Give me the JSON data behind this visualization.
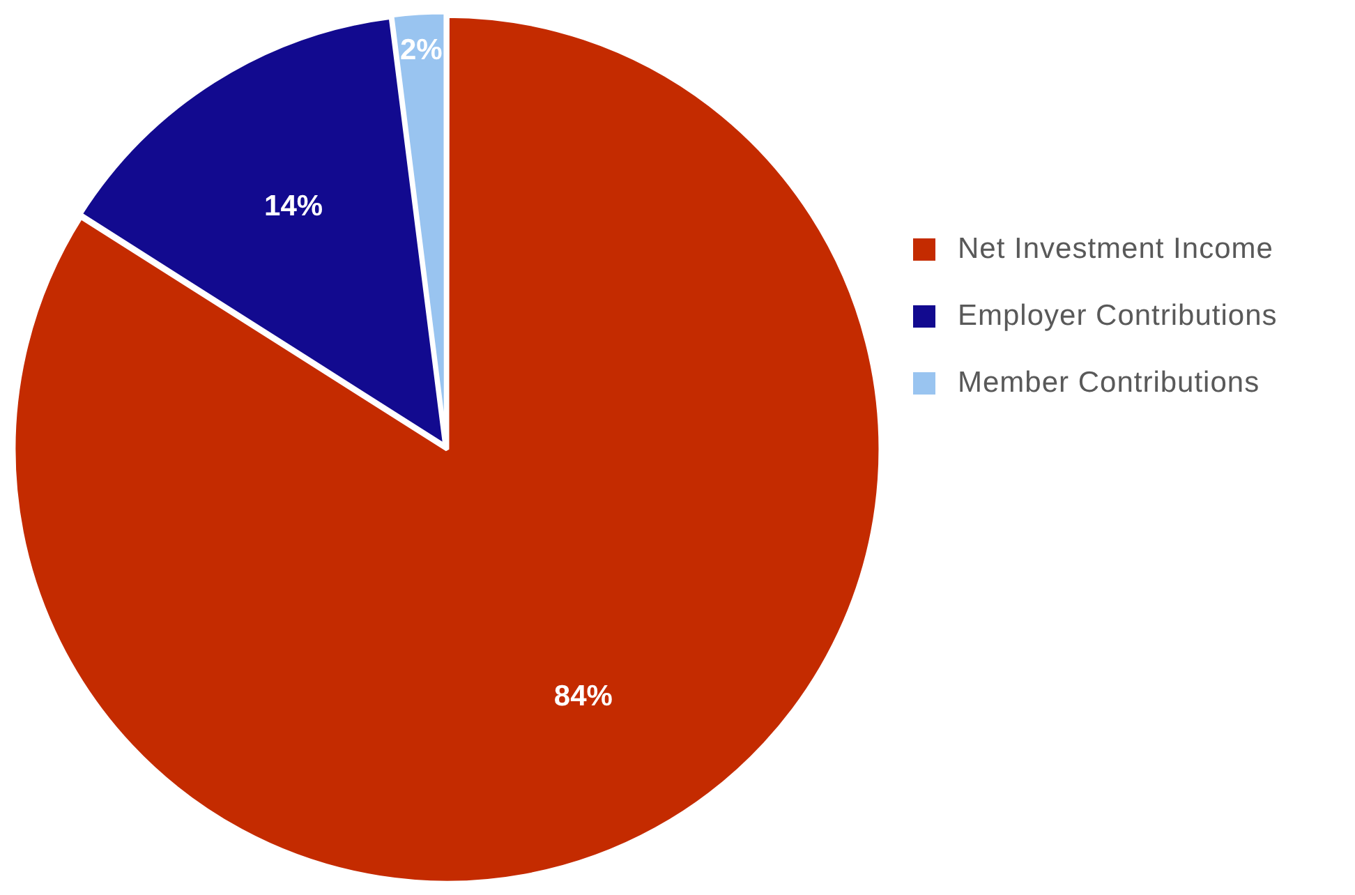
{
  "chart_data": {
    "type": "pie",
    "categories": [
      "Net Investment Income",
      "Employer Contributions",
      "Member Contributions"
    ],
    "values": [
      84,
      14,
      2
    ],
    "colors": [
      "#c42b00",
      "#120a8f",
      "#99c4f0"
    ],
    "value_labels": [
      "84%",
      "14%",
      "2%"
    ],
    "legend": "right"
  }
}
